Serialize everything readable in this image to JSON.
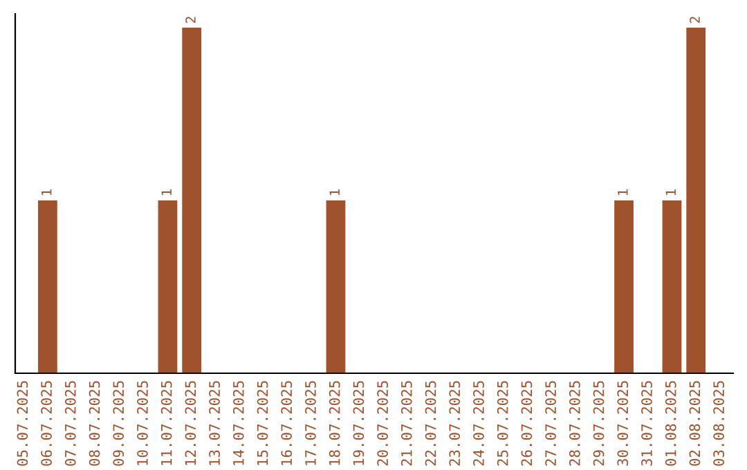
{
  "chart_data": {
    "type": "bar",
    "categories": [
      "05.07.2025",
      "06.07.2025",
      "07.07.2025",
      "08.07.2025",
      "09.07.2025",
      "10.07.2025",
      "11.07.2025",
      "12.07.2025",
      "13.07.2025",
      "14.07.2025",
      "15.07.2025",
      "16.07.2025",
      "17.07.2025",
      "18.07.2025",
      "19.07.2025",
      "20.07.2025",
      "21.07.2025",
      "22.07.2025",
      "23.07.2025",
      "24.07.2025",
      "25.07.2025",
      "26.07.2025",
      "27.07.2025",
      "28.07.2025",
      "29.07.2025",
      "30.07.2025",
      "31.07.2025",
      "01.08.2025",
      "02.08.2025",
      "03.08.2025"
    ],
    "values": [
      0,
      1,
      0,
      0,
      0,
      0,
      1,
      2,
      0,
      0,
      0,
      0,
      0,
      1,
      0,
      0,
      0,
      0,
      0,
      0,
      0,
      0,
      0,
      0,
      0,
      1,
      0,
      1,
      2,
      0
    ],
    "value_labels": [
      null,
      "1",
      null,
      null,
      null,
      null,
      "1",
      "2",
      null,
      null,
      null,
      null,
      null,
      "1",
      null,
      null,
      null,
      null,
      null,
      null,
      null,
      null,
      null,
      null,
      null,
      "1",
      null,
      "1",
      "2",
      null
    ],
    "color": "#a0522d",
    "ylim": [
      0,
      2.08
    ],
    "tick_labels": "x",
    "grid": false
  }
}
